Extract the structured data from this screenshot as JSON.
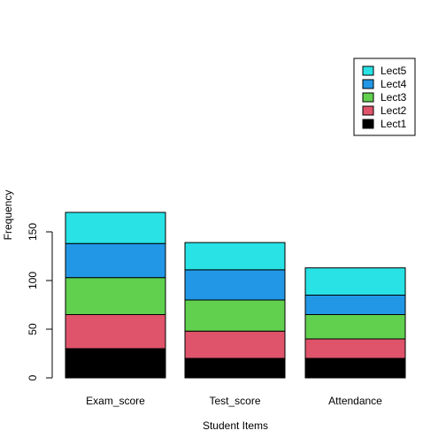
{
  "chart_data": {
    "type": "bar",
    "stacked": true,
    "categories": [
      "Exam_score",
      "Test_score",
      "Attendance"
    ],
    "series": [
      {
        "name": "Lect1",
        "color": "#000000",
        "values": [
          30,
          20,
          20
        ]
      },
      {
        "name": "Lect2",
        "color": "#DF536B",
        "values": [
          35,
          28,
          20
        ]
      },
      {
        "name": "Lect3",
        "color": "#61D04F",
        "values": [
          38,
          32,
          25
        ]
      },
      {
        "name": "Lect4",
        "color": "#2297E6",
        "values": [
          35,
          31,
          20
        ]
      },
      {
        "name": "Lect5",
        "color": "#28E2E5",
        "values": [
          32,
          28,
          28
        ]
      }
    ],
    "totals": [
      170,
      139,
      113
    ],
    "xlabel": "Student Items",
    "ylabel": "Frequency",
    "ylim": [
      0,
      170
    ],
    "yticks": [
      0,
      50,
      100,
      150
    ],
    "grid": false,
    "legend_position": "top-right",
    "legend_order": [
      "Lect5",
      "Lect4",
      "Lect3",
      "Lect2",
      "Lect1"
    ]
  }
}
